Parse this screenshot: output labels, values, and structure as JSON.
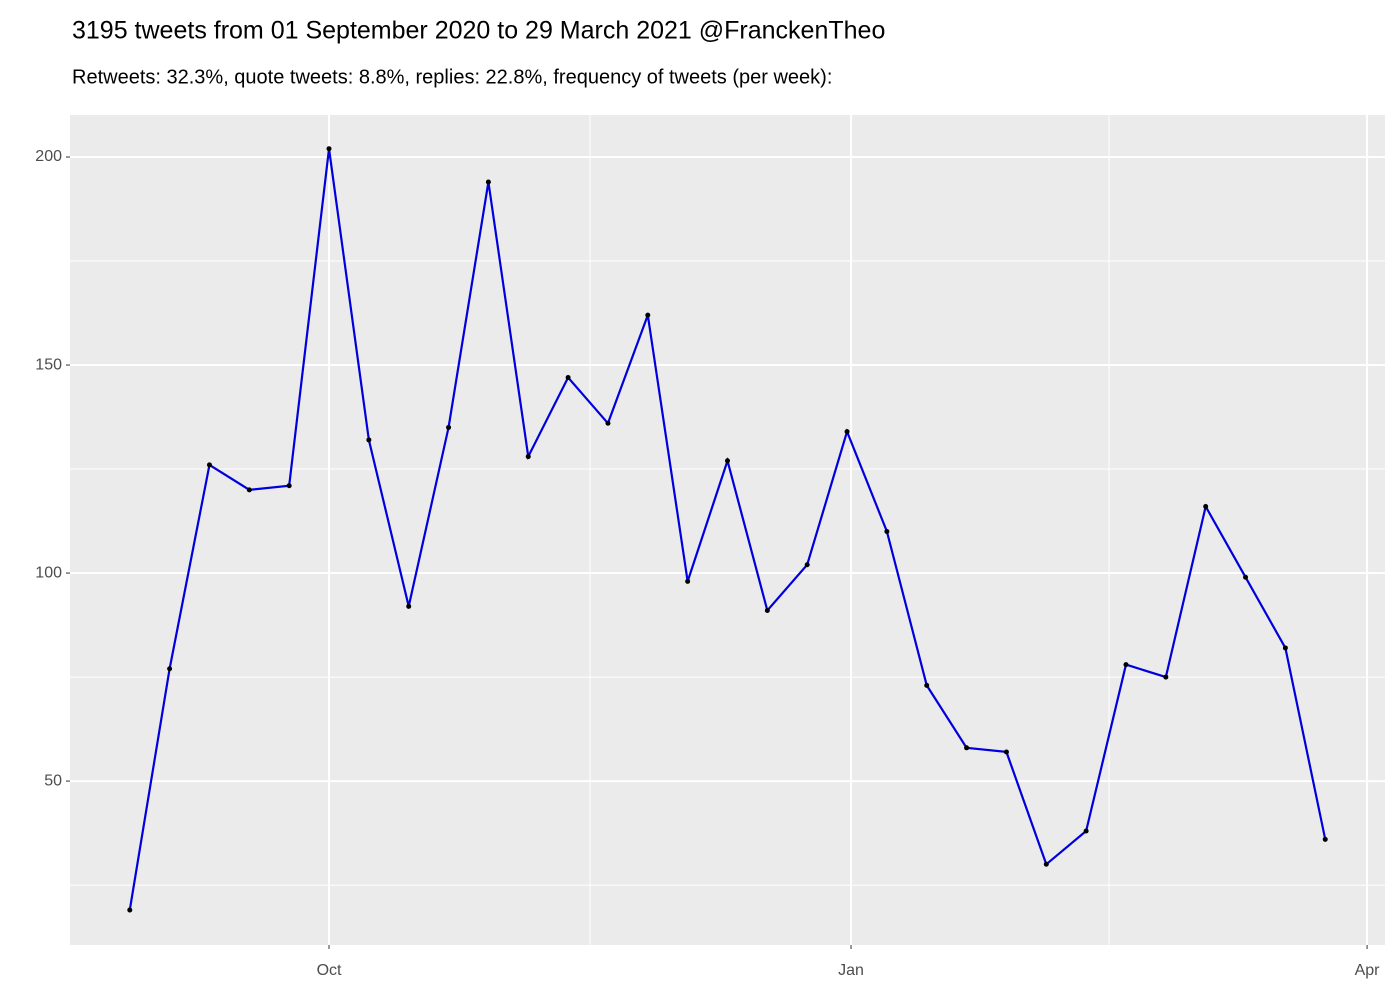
{
  "chart_data": {
    "type": "line",
    "title": "3195 tweets from 01 September 2020 to 29 March 2021 @FranckenTheo",
    "subtitle": "Retweets: 32.3%, quote tweets: 8.8%, replies: 22.8%, frequency of tweets (per week):",
    "categories": [
      null,
      null,
      null,
      null,
      null,
      null,
      null,
      null,
      null,
      null,
      null,
      null,
      null,
      null,
      null,
      null,
      null,
      null,
      null,
      null,
      null,
      null,
      null,
      null,
      null,
      null,
      null,
      null,
      null,
      null,
      null
    ],
    "series": [
      {
        "color": "#0000dd",
        "values": [
          19,
          77,
          126,
          120,
          121,
          202,
          132,
          92,
          135,
          194,
          128,
          147,
          136,
          162,
          98,
          127,
          91,
          102,
          134,
          110,
          73,
          58,
          57,
          30,
          38,
          78,
          75,
          116,
          99,
          82,
          36
        ]
      }
    ],
    "xlim": [
      -1.5,
      31.5
    ],
    "xticks": [
      {
        "value": 5.0,
        "label": "Oct"
      },
      {
        "value": 18.1,
        "label": "Jan"
      },
      {
        "value": 31.05,
        "label": "Apr"
      }
    ],
    "ylim": [
      10.6,
      210.1
    ],
    "yticks": [
      50,
      100,
      150,
      200
    ],
    "grid": true
  }
}
